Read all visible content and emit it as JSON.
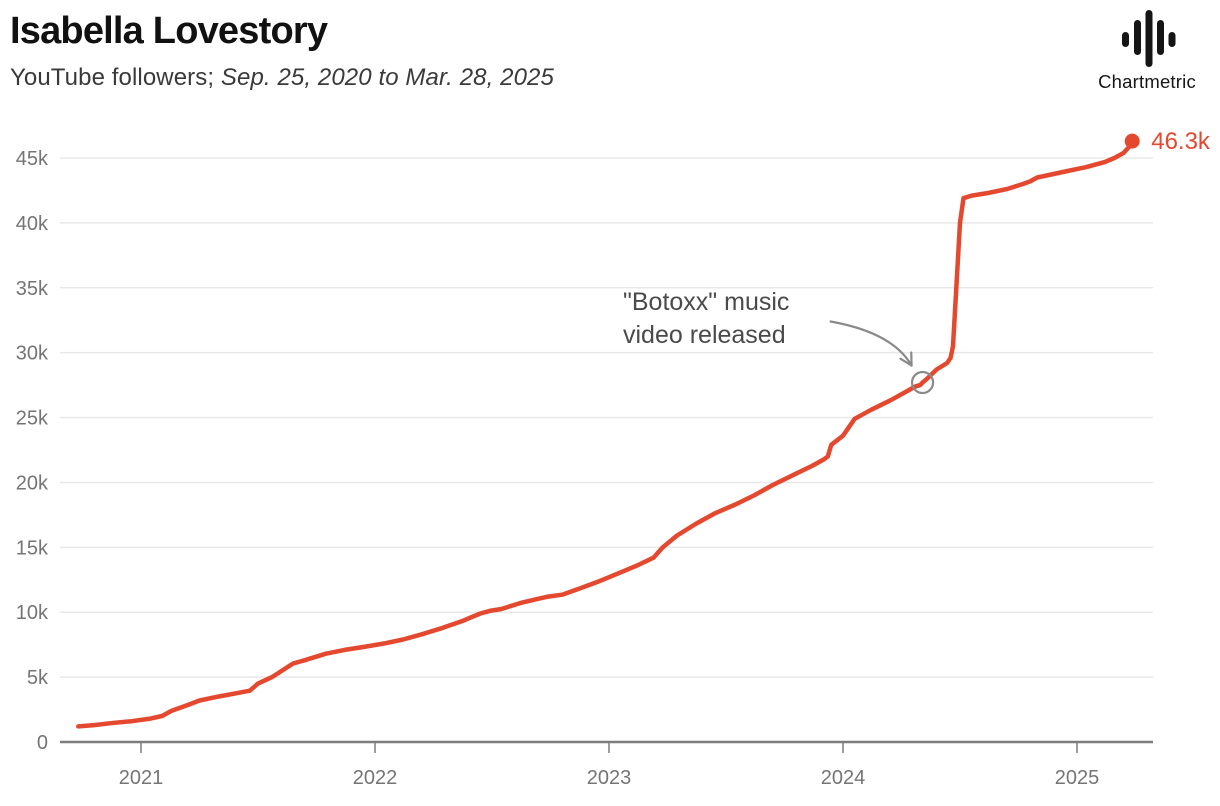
{
  "header": {
    "title": "Isabella Lovestory",
    "subtitle_prefix": "YouTube followers; ",
    "subtitle_dates": "Sep. 25, 2020 to Mar. 28, 2025"
  },
  "brand": {
    "name": "Chartmetric",
    "logo_icon": "audio-waveform-bars-icon"
  },
  "colors": {
    "series": "#e4492f",
    "grid": "#e8e8e8",
    "axis": "#7d7d7d",
    "tick_label": "#757575",
    "title": "#111111",
    "subtitle": "#3a3a3a",
    "annotation_text": "#4a4a4a",
    "annotation_arrow": "#8a8a8a"
  },
  "chart_data": {
    "type": "line",
    "title": "Isabella Lovestory",
    "subtitle": "YouTube followers; Sep. 25, 2020 to Mar. 28, 2025",
    "xlabel": "",
    "ylabel": "YouTube followers",
    "x_unit": "date (decimal years)",
    "y_unit": "followers (thousands)",
    "xlim": [
      2020.68,
      2025.34
    ],
    "ylim": [
      0,
      47.5
    ],
    "grid": "horizontal gridlines only",
    "legend": "none",
    "y_ticks": [
      {
        "v": 0,
        "label": "0"
      },
      {
        "v": 5,
        "label": "5k"
      },
      {
        "v": 10,
        "label": "10k"
      },
      {
        "v": 15,
        "label": "15k"
      },
      {
        "v": 20,
        "label": "20k"
      },
      {
        "v": 25,
        "label": "25k"
      },
      {
        "v": 30,
        "label": "30k"
      },
      {
        "v": 35,
        "label": "35k"
      },
      {
        "v": 40,
        "label": "40k"
      },
      {
        "v": 45,
        "label": "45k"
      }
    ],
    "x_ticks": [
      {
        "v": 2021,
        "label": "2021"
      },
      {
        "v": 2022,
        "label": "2022"
      },
      {
        "v": 2023,
        "label": "2023"
      },
      {
        "v": 2024,
        "label": "2024"
      },
      {
        "v": 2025,
        "label": "2025"
      }
    ],
    "series": [
      {
        "name": "YouTube followers",
        "color": "#e4492f",
        "end_label": "46.3k",
        "points": [
          [
            2020.732,
            1.2
          ],
          [
            2020.8,
            1.3
          ],
          [
            2020.87,
            1.45
          ],
          [
            2020.96,
            1.6
          ],
          [
            2021.04,
            1.8
          ],
          [
            2021.09,
            2.0
          ],
          [
            2021.13,
            2.4
          ],
          [
            2021.2,
            2.85
          ],
          [
            2021.25,
            3.2
          ],
          [
            2021.33,
            3.5
          ],
          [
            2021.42,
            3.8
          ],
          [
            2021.465,
            3.95
          ],
          [
            2021.5,
            4.5
          ],
          [
            2021.56,
            5.0
          ],
          [
            2021.62,
            5.7
          ],
          [
            2021.65,
            6.05
          ],
          [
            2021.7,
            6.3
          ],
          [
            2021.79,
            6.8
          ],
          [
            2021.87,
            7.1
          ],
          [
            2021.96,
            7.35
          ],
          [
            2022.04,
            7.6
          ],
          [
            2022.12,
            7.9
          ],
          [
            2022.2,
            8.3
          ],
          [
            2022.29,
            8.8
          ],
          [
            2022.37,
            9.3
          ],
          [
            2022.45,
            9.9
          ],
          [
            2022.49,
            10.1
          ],
          [
            2022.54,
            10.25
          ],
          [
            2022.62,
            10.7
          ],
          [
            2022.69,
            11.0
          ],
          [
            2022.74,
            11.2
          ],
          [
            2022.8,
            11.35
          ],
          [
            2022.87,
            11.8
          ],
          [
            2022.96,
            12.4
          ],
          [
            2023.04,
            13.0
          ],
          [
            2023.12,
            13.6
          ],
          [
            2023.19,
            14.2
          ],
          [
            2023.23,
            15.0
          ],
          [
            2023.29,
            15.9
          ],
          [
            2023.37,
            16.8
          ],
          [
            2023.45,
            17.6
          ],
          [
            2023.54,
            18.3
          ],
          [
            2023.62,
            19.0
          ],
          [
            2023.7,
            19.8
          ],
          [
            2023.79,
            20.6
          ],
          [
            2023.87,
            21.3
          ],
          [
            2023.92,
            21.8
          ],
          [
            2023.935,
            22.0
          ],
          [
            2023.95,
            22.9
          ],
          [
            2024.0,
            23.6
          ],
          [
            2024.05,
            24.9
          ],
          [
            2024.12,
            25.6
          ],
          [
            2024.2,
            26.3
          ],
          [
            2024.27,
            27.0
          ],
          [
            2024.31,
            27.4
          ],
          [
            2024.33,
            27.5
          ],
          [
            2024.34,
            27.7
          ],
          [
            2024.36,
            28.0
          ],
          [
            2024.4,
            28.7
          ],
          [
            2024.445,
            29.2
          ],
          [
            2024.46,
            29.6
          ],
          [
            2024.47,
            30.5
          ],
          [
            2024.5,
            40.0
          ],
          [
            2024.515,
            41.9
          ],
          [
            2024.55,
            42.1
          ],
          [
            2024.62,
            42.3
          ],
          [
            2024.7,
            42.6
          ],
          [
            2024.77,
            43.0
          ],
          [
            2024.8,
            43.2
          ],
          [
            2024.83,
            43.5
          ],
          [
            2024.87,
            43.65
          ],
          [
            2024.96,
            44.0
          ],
          [
            2025.04,
            44.3
          ],
          [
            2025.12,
            44.7
          ],
          [
            2025.16,
            45.0
          ],
          [
            2025.2,
            45.4
          ],
          [
            2025.225,
            45.9
          ],
          [
            2025.236,
            46.3
          ]
        ]
      }
    ],
    "annotation": {
      "lines": [
        "\"Botoxx\" music",
        "video released"
      ],
      "point": {
        "t": 2024.34,
        "v": 27.7
      }
    }
  }
}
